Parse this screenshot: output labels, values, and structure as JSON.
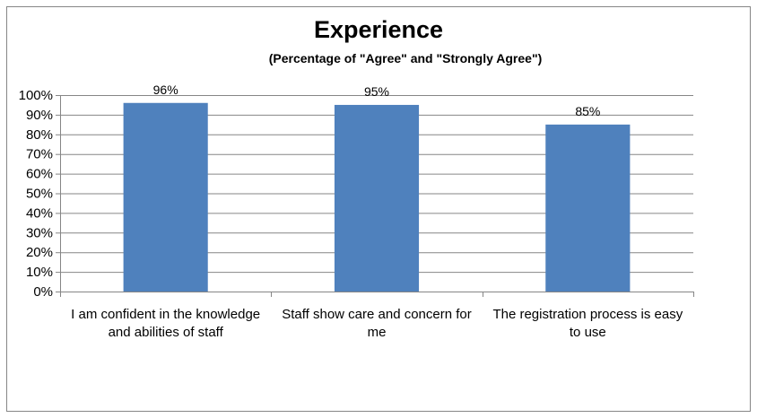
{
  "chart_data": {
    "type": "bar",
    "title": "Experience",
    "subtitle": "(Percentage of \"Agree\" and \"Strongly Agree\")",
    "categories": [
      [
        "I am confident in the knowledge",
        "and abilities of staff"
      ],
      [
        "Staff show care and concern for",
        "me"
      ],
      [
        "The registration process is easy",
        "to use"
      ]
    ],
    "values": [
      96,
      95,
      85
    ],
    "data_labels": [
      "96%",
      "95%",
      "85%"
    ],
    "ylim": [
      0,
      100
    ],
    "yticks": [
      0,
      10,
      20,
      30,
      40,
      50,
      60,
      70,
      80,
      90,
      100
    ],
    "ytick_labels": [
      "0%",
      "10%",
      "20%",
      "30%",
      "40%",
      "50%",
      "60%",
      "70%",
      "80%",
      "90%",
      "100%"
    ],
    "grid": true,
    "legend": "none",
    "bar_color": "#4F81BD",
    "grid_color": "#868686"
  }
}
